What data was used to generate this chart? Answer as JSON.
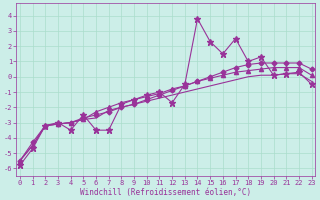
{
  "xlabel": "Windchill (Refroidissement éolien,°C)",
  "bg_color": "#cceee8",
  "grid_color": "#aaddcc",
  "line_color": "#993399",
  "spine_color": "#993399",
  "x_ticks": [
    0,
    1,
    2,
    3,
    4,
    5,
    6,
    7,
    8,
    9,
    10,
    11,
    12,
    13,
    14,
    15,
    16,
    17,
    18,
    19,
    20,
    21,
    22,
    23
  ],
  "y_ticks": [
    -6,
    -5,
    -4,
    -3,
    -2,
    -1,
    0,
    1,
    2,
    3,
    4
  ],
  "xlim": [
    -0.3,
    23.3
  ],
  "ylim": [
    -6.5,
    4.8
  ],
  "series1_x": [
    0,
    1,
    2,
    3,
    4,
    5,
    6,
    7,
    8,
    9,
    10,
    11,
    12,
    13,
    14,
    15,
    16,
    17,
    18,
    19,
    20,
    21,
    22,
    23
  ],
  "series1_y": [
    -5.8,
    -4.7,
    -3.2,
    -3.0,
    -3.5,
    -2.5,
    -3.5,
    -3.5,
    -1.8,
    -1.5,
    -1.2,
    -1.0,
    -1.7,
    -0.5,
    3.8,
    2.3,
    1.5,
    2.5,
    1.0,
    1.3,
    0.1,
    0.2,
    0.3,
    -0.5
  ],
  "series2_x": [
    0,
    1,
    2,
    3,
    4,
    5,
    6,
    7,
    8,
    9,
    10,
    11,
    12,
    13,
    14,
    15,
    16,
    17,
    18,
    19,
    20,
    21,
    22,
    23
  ],
  "series2_y": [
    -5.5,
    -4.5,
    -3.2,
    -3.1,
    -3.0,
    -2.8,
    -2.7,
    -2.2,
    -2.0,
    -1.8,
    -1.6,
    -1.4,
    -1.2,
    -1.0,
    -0.8,
    -0.6,
    -0.4,
    -0.2,
    0.0,
    0.1,
    0.1,
    0.2,
    0.2,
    -0.3
  ],
  "series3_x": [
    0,
    1,
    2,
    3,
    4,
    5,
    6,
    7,
    8,
    9,
    10,
    11,
    12,
    13,
    14,
    15,
    16,
    17,
    18,
    19,
    20,
    21,
    22,
    23
  ],
  "series3_y": [
    -5.5,
    -4.5,
    -3.2,
    -3.1,
    -3.0,
    -2.8,
    -2.3,
    -2.0,
    -1.7,
    -1.5,
    -1.3,
    -1.1,
    -0.8,
    -0.6,
    -0.3,
    -0.1,
    0.1,
    0.3,
    0.4,
    0.5,
    0.6,
    0.6,
    0.6,
    0.1
  ],
  "series4_x": [
    0,
    1,
    2,
    3,
    4,
    5,
    6,
    7,
    8,
    9,
    10,
    11,
    12,
    13,
    14,
    15,
    16,
    17,
    18,
    19,
    20,
    21,
    22,
    23
  ],
  "series4_y": [
    -5.5,
    -4.3,
    -3.2,
    -3.1,
    -3.0,
    -2.7,
    -2.5,
    -2.3,
    -2.0,
    -1.8,
    -1.5,
    -1.2,
    -0.9,
    -0.6,
    -0.3,
    0.0,
    0.3,
    0.6,
    0.8,
    0.9,
    0.9,
    0.9,
    0.9,
    0.5
  ],
  "tick_fontsize": 5.0,
  "xlabel_fontsize": 5.5,
  "linewidth": 0.8,
  "marker_size": 3.0
}
